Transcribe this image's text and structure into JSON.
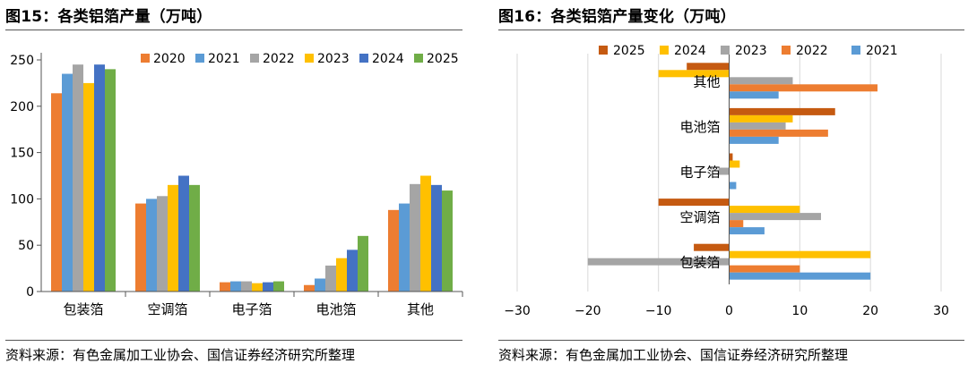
{
  "colors": {
    "2020": "#ED7D31",
    "2021": "#5B9BD5",
    "2022": "#A5A5A5",
    "2023": "#FFC000",
    "2024": "#4472C4",
    "2025": "#70AD47",
    "2025_change": "#C55A11",
    "2024_change": "#FFC000",
    "2023_change": "#A5A5A5",
    "2022_change": "#ED7D31",
    "2021_change": "#5B9BD5"
  },
  "chart_data": [
    {
      "type": "bar",
      "title": "图15：各类铝箔产量（万吨）",
      "categories": [
        "包装箔",
        "空调箔",
        "电子箔",
        "电池箔",
        "其他"
      ],
      "series": [
        {
          "name": "2020",
          "values": [
            214,
            95,
            10,
            7,
            88
          ]
        },
        {
          "name": "2021",
          "values": [
            235,
            100,
            11,
            14,
            95
          ]
        },
        {
          "name": "2022",
          "values": [
            245,
            103,
            11,
            28,
            116
          ]
        },
        {
          "name": "2023",
          "values": [
            225,
            115,
            9,
            36,
            125
          ]
        },
        {
          "name": "2024",
          "values": [
            245,
            125,
            10,
            45,
            115
          ]
        },
        {
          "name": "2025",
          "values": [
            240,
            115,
            11,
            60,
            109
          ]
        }
      ],
      "ylim": [
        0,
        250
      ],
      "yticks": [
        "0",
        "50",
        "100",
        "150",
        "200",
        "250"
      ],
      "legend": "top-right",
      "source": "资料来源：有色金属加工业协会、国信证券经济研究所整理"
    },
    {
      "type": "bar",
      "orientation": "horizontal",
      "title": "图16：各类铝箔产量变化（万吨）",
      "categories": [
        "其他",
        "电池箔",
        "电子箔",
        "空调箔",
        "包装箔"
      ],
      "series": [
        {
          "name": "2025",
          "values": [
            -6,
            15,
            0.5,
            -10,
            -5
          ]
        },
        {
          "name": "2024",
          "values": [
            -10,
            9,
            1.5,
            10,
            20
          ]
        },
        {
          "name": "2023",
          "values": [
            9,
            8,
            -1.5,
            13,
            -20
          ]
        },
        {
          "name": "2022",
          "values": [
            21,
            14,
            0,
            2,
            10
          ]
        },
        {
          "name": "2021",
          "values": [
            7,
            7,
            1,
            5,
            20
          ]
        }
      ],
      "xlim": [
        -30,
        30
      ],
      "xticks": [
        "−30",
        "−20",
        "−10",
        "0",
        "10",
        "20",
        "30"
      ],
      "legend": "top",
      "source": "资料来源：有色金属加工业协会、国信证券经济研究所整理"
    }
  ]
}
